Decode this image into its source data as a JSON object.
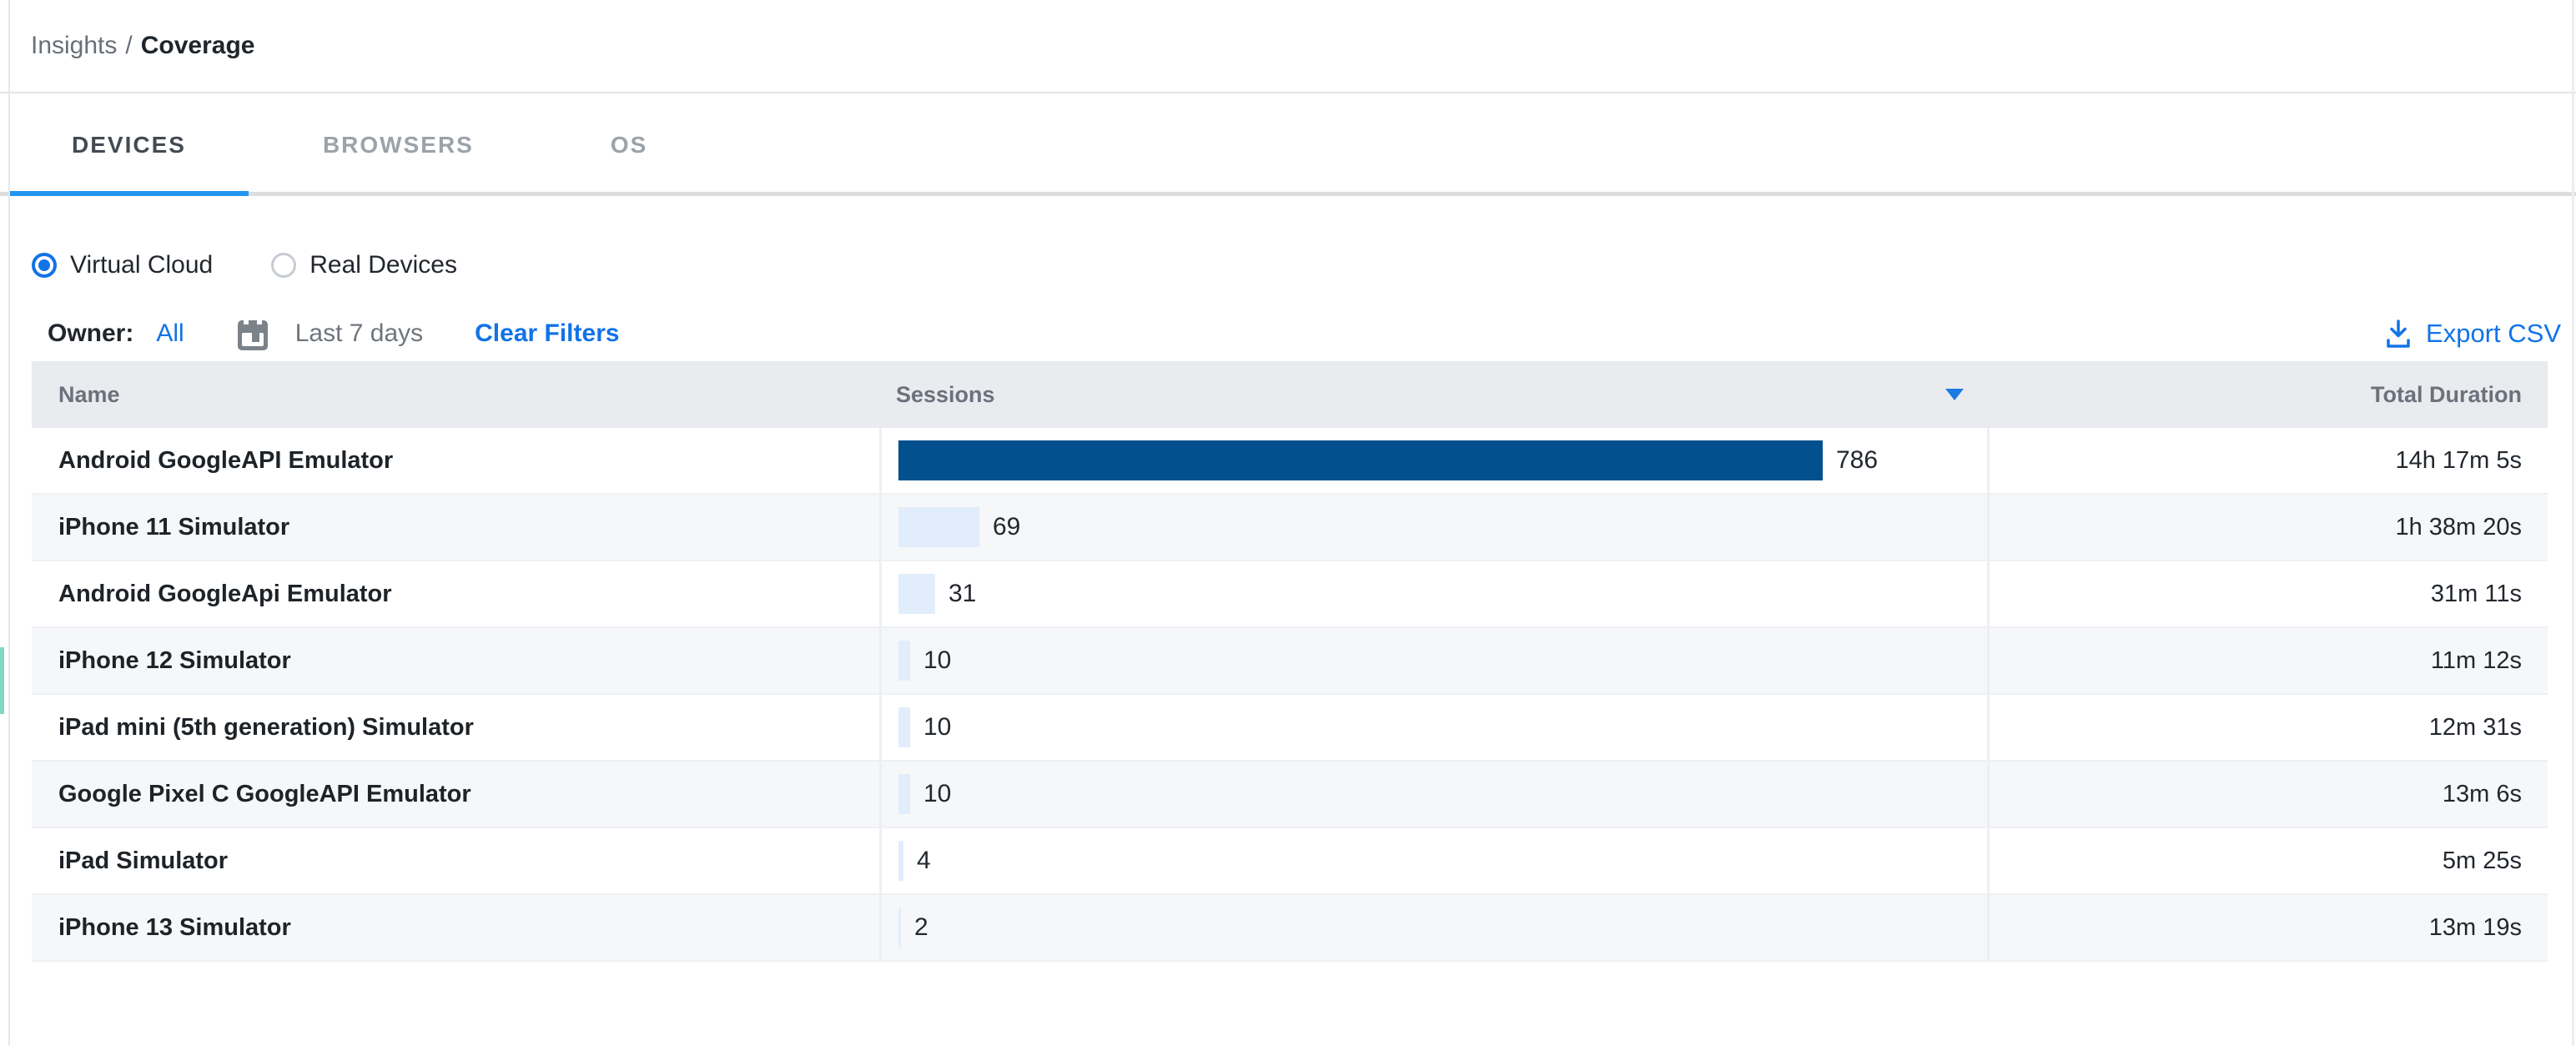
{
  "breadcrumb": {
    "section": "Insights",
    "separator": "/",
    "page": "Coverage"
  },
  "tabs": [
    {
      "label": "DEVICES",
      "active": true
    },
    {
      "label": "BROWSERS",
      "active": false
    },
    {
      "label": "OS",
      "active": false
    }
  ],
  "cloud_toggle": [
    {
      "label": "Virtual Cloud",
      "selected": true
    },
    {
      "label": "Real Devices",
      "selected": false
    }
  ],
  "filters": {
    "owner_label": "Owner:",
    "owner_value": "All",
    "date_range": "Last 7 days",
    "clear_label": "Clear Filters",
    "export_label": "Export CSV"
  },
  "icons": {
    "calendar": "calendar-icon",
    "download": "download-icon",
    "sort_desc": "sort-desc-caret"
  },
  "table": {
    "columns": {
      "name": "Name",
      "sessions": "Sessions",
      "duration": "Total Duration"
    },
    "sort": {
      "column": "Sessions",
      "direction": "desc"
    },
    "max_sessions": 786,
    "rows": [
      {
        "name": "Android GoogleAPI Emulator",
        "sessions": 786,
        "duration": "14h 17m 5s"
      },
      {
        "name": "iPhone 11 Simulator",
        "sessions": 69,
        "duration": "1h 38m 20s"
      },
      {
        "name": "Android GoogleApi Emulator",
        "sessions": 31,
        "duration": "31m 11s"
      },
      {
        "name": "iPhone 12 Simulator",
        "sessions": 10,
        "duration": "11m 12s"
      },
      {
        "name": "iPad mini (5th generation) Simulator",
        "sessions": 10,
        "duration": "12m 31s"
      },
      {
        "name": "Google Pixel C GoogleAPI Emulator",
        "sessions": 10,
        "duration": "13m 6s"
      },
      {
        "name": "iPad Simulator",
        "sessions": 4,
        "duration": "5m 25s"
      },
      {
        "name": "iPhone 13 Simulator",
        "sessions": 2,
        "duration": "13m 19s"
      }
    ]
  },
  "colors": {
    "accent_blue": "#1273E6",
    "tab_underline_blue": "#2196EE",
    "bar_dark": "#02508E",
    "bar_light": "#E2EDFB",
    "header_bg": "#EAEBEF",
    "stripe_bg": "#F6F7F9"
  }
}
